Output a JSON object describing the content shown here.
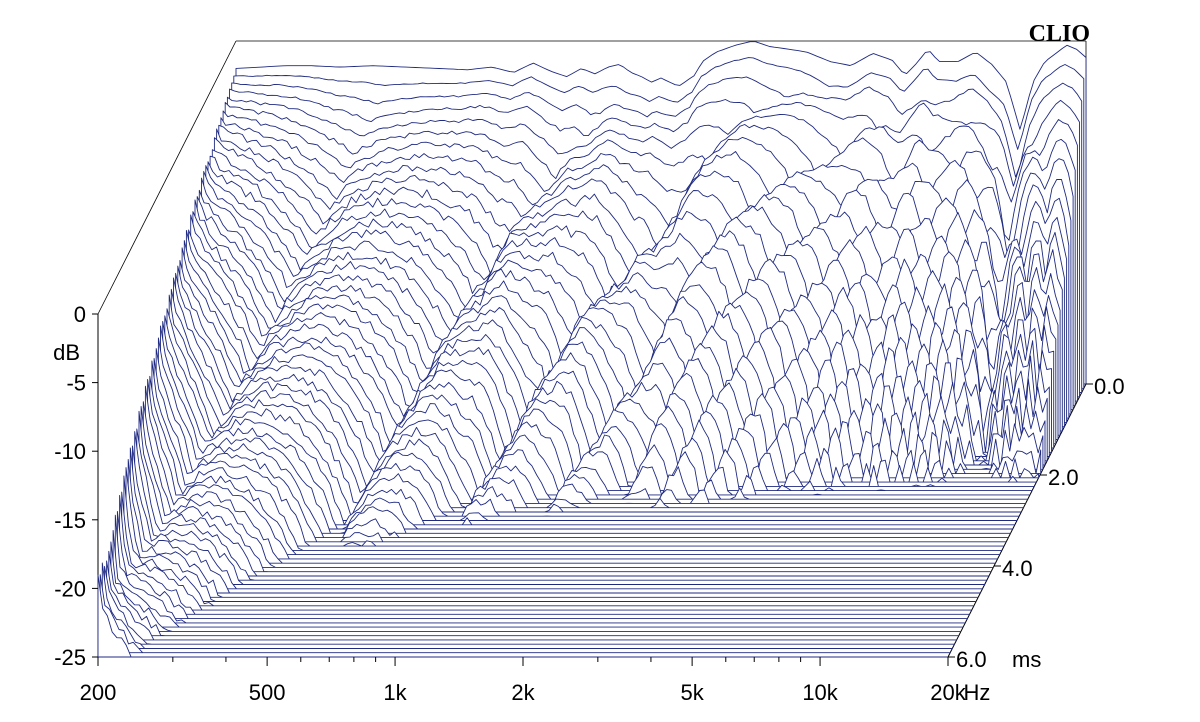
{
  "brand": "CLIO",
  "chart_data": {
    "type": "waterfall",
    "x_axis": {
      "scale": "log",
      "range": [
        200,
        20000
      ],
      "ticks": [
        {
          "value": 200,
          "label": "200"
        },
        {
          "value": 500,
          "label": "500"
        },
        {
          "value": 1000,
          "label": "1k"
        },
        {
          "value": 2000,
          "label": "2k"
        },
        {
          "value": 5000,
          "label": "5k"
        },
        {
          "value": 10000,
          "label": "10k"
        },
        {
          "value": 20000,
          "label": "20k"
        }
      ],
      "unit_label": "Hz"
    },
    "y_axis": {
      "range": [
        -25,
        0
      ],
      "ticks": [
        {
          "value": 0,
          "label": "0"
        },
        {
          "value": -5,
          "label": "-5"
        },
        {
          "value": -10,
          "label": "-10"
        },
        {
          "value": -15,
          "label": "-15"
        },
        {
          "value": -20,
          "label": "-20"
        },
        {
          "value": -25,
          "label": "-25"
        }
      ],
      "unit_label": "dB"
    },
    "z_axis": {
      "range": [
        0,
        6
      ],
      "ticks": [
        {
          "value": 0,
          "label": "0.0"
        },
        {
          "value": 2,
          "label": "2.0"
        },
        {
          "value": 4,
          "label": "4.0"
        },
        {
          "value": 6,
          "label": "6.0"
        }
      ],
      "unit_label": "ms"
    },
    "slices": 65,
    "line_color": "#1f2a80",
    "initial_response": {
      "freq_hz": [
        200,
        230,
        260,
        300,
        350,
        420,
        500,
        600,
        700,
        800,
        900,
        1000,
        1100,
        1200,
        1300,
        1400,
        1500,
        1600,
        1700,
        1800,
        1900,
        2000,
        2200,
        2400,
        2500,
        2700,
        3000,
        3300,
        3600,
        4000,
        4400,
        5000,
        5600,
        6300,
        7000,
        7500,
        8000,
        8500,
        9000,
        10000,
        11000,
        12000,
        13000,
        14000,
        15000,
        16000,
        17000,
        18000,
        19000,
        20000
      ],
      "db": [
        -2.0,
        -1.9,
        -1.8,
        -1.8,
        -1.9,
        -1.8,
        -1.9,
        -2.0,
        -2.1,
        -1.9,
        -2.3,
        -1.6,
        -2.2,
        -2.6,
        -2.0,
        -2.4,
        -1.9,
        -1.7,
        -2.3,
        -2.6,
        -3.0,
        -2.7,
        -3.3,
        -2.5,
        -1.5,
        -0.8,
        -0.3,
        0.0,
        -0.4,
        -0.6,
        -0.8,
        -1.5,
        -1.8,
        -0.9,
        -1.4,
        -2.5,
        -1.6,
        -0.6,
        -1.5,
        -1.5,
        -0.8,
        -1.7,
        -3.0,
        -6.5,
        -3.0,
        -1.5,
        -0.9,
        -0.3,
        -0.6,
        -1.2
      ]
    }
  }
}
